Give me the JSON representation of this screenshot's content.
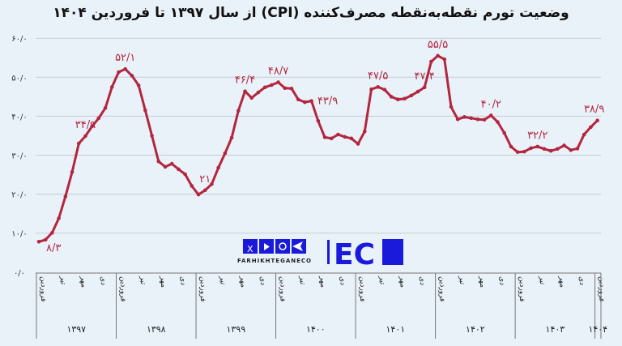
{
  "chart_data": {
    "type": "line",
    "title": "وضعیت تورم نقطه‌به‌نقطه مصرف‌کننده (CPI) از سال ۱۳۹۷ تا فروردین ۱۴۰۴",
    "xlabel": "",
    "ylabel": "",
    "ylim": [
      0,
      60
    ],
    "yticks": [
      0,
      10,
      20,
      30,
      40,
      50,
      60
    ],
    "ytick_labels": [
      "۰/۰",
      "۱۰/۰",
      "۲۰/۰",
      "۳۰/۰",
      "۴۰/۰",
      "۵۰/۰",
      "۶۰/۰"
    ],
    "grid": true,
    "line_color": "#b3263f",
    "years": [
      "۱۳۹۷",
      "۱۳۹۸",
      "۱۳۹۹",
      "۱۴۰۰",
      "۱۴۰۱",
      "۱۴۰۲",
      "۱۴۰۳",
      "۱۴۰۴"
    ],
    "month_ticks": [
      "فروردین",
      "تیر",
      "مهر",
      "دی"
    ],
    "values": [
      7.8,
      8.3,
      10.1,
      13.8,
      19.4,
      25.7,
      33.0,
      34.9,
      37.4,
      39.5,
      42.1,
      47.5,
      51.3,
      52.1,
      50.4,
      47.9,
      41.5,
      35.0,
      28.4,
      27.0,
      27.8,
      26.4,
      25.1,
      22.1,
      19.9,
      21.0,
      22.6,
      26.8,
      30.5,
      34.5,
      41.4,
      46.4,
      44.7,
      46.1,
      47.4,
      48.0,
      48.7,
      47.2,
      47.1,
      44.3,
      43.6,
      43.9,
      38.8,
      34.6,
      34.3,
      35.3,
      34.7,
      34.3,
      32.9,
      36.1,
      46.9,
      47.5,
      46.8,
      45.0,
      44.3,
      44.5,
      45.3,
      46.3,
      47.4,
      54.0,
      55.5,
      54.6,
      42.4,
      39.2,
      39.8,
      39.5,
      39.2,
      39.1,
      40.2,
      38.5,
      35.7,
      32.2,
      30.8,
      30.9,
      31.8,
      32.2,
      31.6,
      31.1,
      31.6,
      32.5,
      31.3,
      31.7,
      35.3,
      37.2,
      38.9
    ],
    "data_labels": [
      {
        "index": 1,
        "text": "۸/۳"
      },
      {
        "index": 7,
        "text": "۳۴/۹"
      },
      {
        "index": 13,
        "text": "۵۲/۱"
      },
      {
        "index": 25,
        "text": "۲۱"
      },
      {
        "index": 31,
        "text": "۴۶/۴"
      },
      {
        "index": 36,
        "text": "۴۸/۷"
      },
      {
        "index": 41,
        "text": "۴۳/۹"
      },
      {
        "index": 51,
        "text": "۴۷/۵"
      },
      {
        "index": 58,
        "text": "۴۷/۴"
      },
      {
        "index": 60,
        "text": "۵۵/۵"
      },
      {
        "index": 68,
        "text": "۴۰/۲"
      },
      {
        "index": 75,
        "text": "۳۲/۲"
      },
      {
        "index": 84,
        "text": "۳۸/۹"
      }
    ]
  },
  "logo": {
    "text": "FARHIKHTEGANECO",
    "mark": "EC",
    "brand_color": "#1a1adb",
    "icons": [
      "x-icon",
      "youtube-icon",
      "instagram-icon",
      "telegram-icon"
    ]
  }
}
